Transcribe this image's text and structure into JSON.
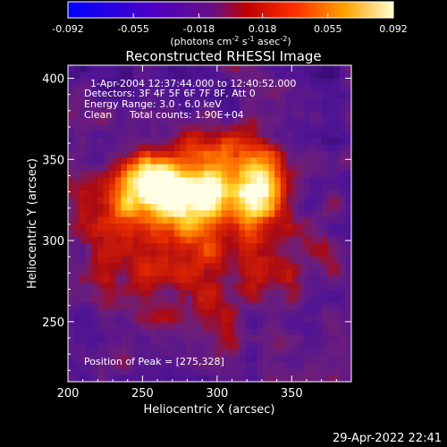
{
  "colorbar": {
    "ticks": [
      "-0.092",
      "-0.055",
      "-0.018",
      "0.018",
      "0.055",
      "0.092"
    ],
    "min": -0.092,
    "max": 0.092,
    "units_text": "(photons cm",
    "units_sup1": "-2",
    "units_mid1": " s",
    "units_sup2": "-1",
    "units_mid2": " asec",
    "units_sup3": "-2",
    "units_end": ")"
  },
  "chart_data": {
    "type": "heatmap",
    "title": "Reconstructed RHESSI Image",
    "xlabel": "Heliocentric X (arcsec)",
    "ylabel": "Heliocentric Y (arcsec)",
    "xlim": [
      200,
      390
    ],
    "ylim": [
      213,
      408
    ],
    "xticks": [
      "200",
      "250",
      "300",
      "350"
    ],
    "yticks": [
      "250",
      "300",
      "350",
      "400"
    ],
    "peak": [
      275,
      328
    ],
    "colormap": "red-temperature",
    "colors": {
      "low": "#3a0a78",
      "mid": "#d81800",
      "high": "#ffffff"
    },
    "annotations": {
      "time": "1-Apr-2004 12:37:44.000 to 12:40:52.000",
      "detectors": "Detectors: 3F 4F 5F 6F 7F 8F, Att 0",
      "energy": "Energy Range: 3.0 - 6.0 keV",
      "clean": "Clean",
      "counts": "Total counts: 1.90E+04",
      "peak_label": "Position of Peak = [275,328]"
    }
  },
  "footer": {
    "date": "29-Apr-2022 22:41"
  }
}
